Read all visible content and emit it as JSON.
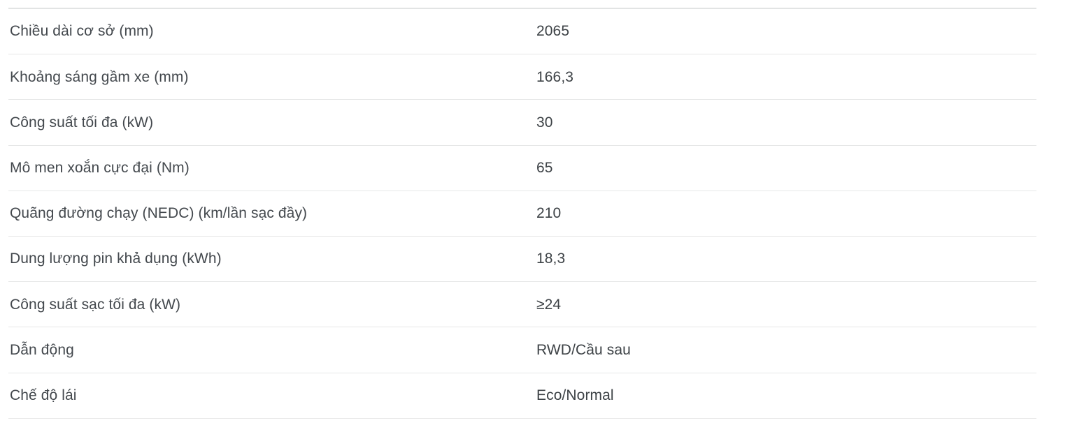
{
  "spec_table": {
    "columns": [
      "label",
      "value"
    ],
    "rows": [
      {
        "label": "Chiều dài cơ sở (mm)",
        "value": "2065"
      },
      {
        "label": "Khoảng sáng gầm xe (mm)",
        "value": "166,3"
      },
      {
        "label": "Công suất tối đa (kW)",
        "value": "30"
      },
      {
        "label": "Mô men xoắn cực đại (Nm)",
        "value": "65"
      },
      {
        "label": "Quãng đường chạy (NEDC) (km/lần sạc đầy)",
        "value": "210"
      },
      {
        "label": "Dung lượng pin khả dụng (kWh)",
        "value": "18,3"
      },
      {
        "label": "Công suất sạc tối đa (kW)",
        "value": "≥24"
      },
      {
        "label": "Dẫn động",
        "value": "RWD/Cầu sau"
      },
      {
        "label": "Chế độ lái",
        "value": "Eco/Normal"
      }
    ],
    "colors": {
      "background": "#ffffff",
      "text": "#43484d",
      "divider": "#e6e7e7",
      "top_border": "#e2e4e4"
    }
  }
}
